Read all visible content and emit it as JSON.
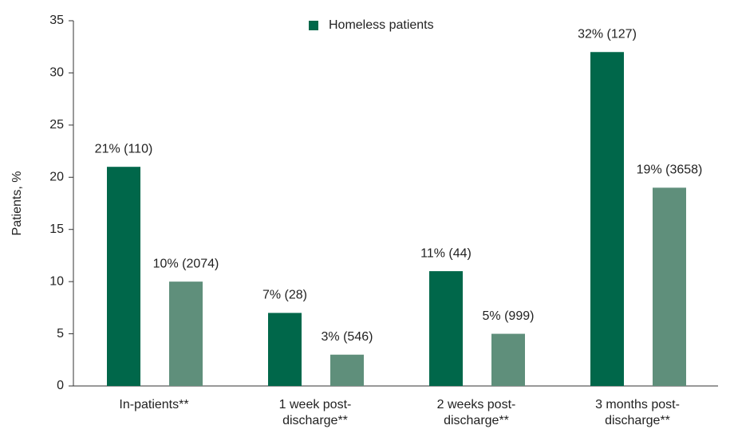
{
  "chart_data": {
    "type": "bar",
    "y_label": "Patients, %",
    "categories": [
      "In-patients**",
      "1 week post-\ndischarge**",
      "2 weeks post-\ndischarge**",
      "3 months post-\ndischarge**"
    ],
    "series": [
      {
        "name": "Homeless patients",
        "color": "#00674a",
        "values": [
          21,
          7,
          11,
          32
        ],
        "value_labels": [
          "21% (110)",
          "7% (28)",
          "11% (44)",
          "32% (127)"
        ]
      },
      {
        "color": "#5f8f7b",
        "values": [
          10,
          3,
          5,
          19
        ],
        "value_labels": [
          "10% (2074)",
          "3% (546)",
          "5% (999)",
          "19% (3658)"
        ]
      }
    ],
    "ylim": [
      0,
      35
    ],
    "yticks": [
      0,
      5,
      10,
      15,
      20,
      25,
      30,
      35
    ]
  }
}
